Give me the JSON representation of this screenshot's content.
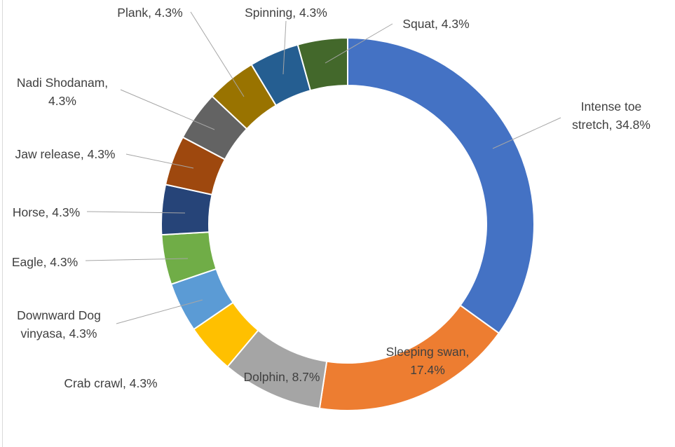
{
  "chart_data": {
    "type": "pie",
    "style": "donut",
    "title": "",
    "slices": [
      {
        "label": "Intense toe stretch",
        "lines": [
          "Intense toe",
          "stretch, 34.8%"
        ],
        "value": 34.8,
        "color": "#4472C4"
      },
      {
        "label": "Sleeping swan",
        "lines": [
          "Sleeping swan,",
          "17.4%"
        ],
        "value": 17.4,
        "color": "#ED7D31"
      },
      {
        "label": "Dolphin",
        "lines": [
          "Dolphin, 8.7%"
        ],
        "value": 8.7,
        "color": "#A5A5A5"
      },
      {
        "label": "Crab crawl",
        "lines": [
          "Crab crawl, 4.3%"
        ],
        "value": 4.3,
        "color": "#FFC000"
      },
      {
        "label": "Downward Dog vinyasa",
        "lines": [
          "Downward Dog",
          "vinyasa, 4.3%"
        ],
        "value": 4.3,
        "color": "#5B9BD5"
      },
      {
        "label": "Eagle",
        "lines": [
          "Eagle, 4.3%"
        ],
        "value": 4.3,
        "color": "#70AD47"
      },
      {
        "label": "Horse",
        "lines": [
          "Horse, 4.3%"
        ],
        "value": 4.3,
        "color": "#264478"
      },
      {
        "label": "Jaw release",
        "lines": [
          "Jaw release, 4.3%"
        ],
        "value": 4.3,
        "color": "#9E480E"
      },
      {
        "label": "Nadi Shodanam",
        "lines": [
          "Nadi Shodanam,",
          "4.3%"
        ],
        "value": 4.3,
        "color": "#636363"
      },
      {
        "label": "Plank",
        "lines": [
          "Plank, 4.3%"
        ],
        "value": 4.3,
        "color": "#997300"
      },
      {
        "label": "Spinning",
        "lines": [
          "Spinning, 4.3%"
        ],
        "value": 4.3,
        "color": "#255E91"
      },
      {
        "label": "Squat",
        "lines": [
          "Squat, 4.3%"
        ],
        "value": 4.3,
        "color": "#43682B"
      }
    ],
    "legend": "none",
    "data_labels": "outside-with-leader-lines"
  }
}
